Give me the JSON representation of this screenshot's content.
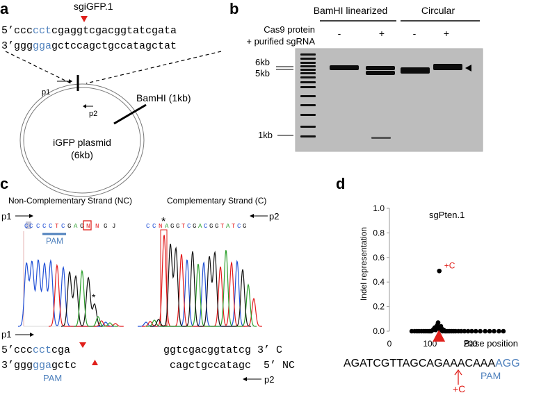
{
  "colors": {
    "blue": "#4f81bd",
    "red": "#e0201b",
    "trace_green": "#2ca02c",
    "trace_blue": "#1f4fd6",
    "trace_red": "#e31a1c",
    "trace_black": "#111111",
    "gel_bg": "#bdbdbd",
    "band": "#0d0d0d"
  },
  "panel_a": {
    "label": "a",
    "guide": "sgiGFP.1",
    "top": {
      "prefix": "5’ccc",
      "blue": "cct",
      "suffix": "cgaggtcgacggtatcgata"
    },
    "bottom": {
      "prefix": "3’ggg",
      "blue": "gga",
      "suffix": "gctccagctgccatagctat"
    },
    "p1": "p1",
    "p2": "p2",
    "bamhi": "BamHI (1kb)",
    "plasmid_line1": "iGFP plasmid",
    "plasmid_line2": "(6kb)"
  },
  "panel_b": {
    "label": "b",
    "group1": "BamHI linearized",
    "group2": "Circular",
    "row_label_1": "Cas9 protein",
    "row_label_2": "+ purified sgRNA",
    "signs": [
      "-",
      "+",
      "-",
      "+"
    ],
    "marker_6kb": "6kb",
    "marker_5kb": "5kb",
    "marker_1kb": "1kb"
  },
  "panel_c": {
    "label": "c",
    "nc_title": "Non-Complementary Strand (NC)",
    "c_title": "Complementary Strand (C)",
    "p1": "p1",
    "p2": "p2",
    "nc_bases": [
      "C",
      "C",
      "C",
      "C",
      "C",
      "T",
      "C",
      "G",
      "A",
      "G",
      "N",
      "N",
      "G",
      "J"
    ],
    "c_bases": [
      "C",
      "C",
      "N",
      "A",
      "G",
      "G",
      "T",
      "C",
      "G",
      "A",
      "C",
      "G",
      "G",
      "T",
      "A",
      "T",
      "C",
      "G"
    ],
    "pam": "PAM",
    "star": "*",
    "seq1": {
      "prefix": "5’ccc",
      "blue": "cct",
      "suffix": "cga"
    },
    "seq2": {
      "prefix": "3’ggg",
      "blue": "gga",
      "suffix": "gctc"
    },
    "pam_bottom": "PAM",
    "right1": "ggtcgacggtatcg 3’ C",
    "right2": "cagctgccatagc  5’ NC",
    "p1_bottom": "p1",
    "p2_bottom": "p2"
  },
  "panel_d": {
    "label": "d",
    "sequence_black": "AGATCGTTAGCAGAAACAAA",
    "sequence_blue": "AGG",
    "pam": "PAM",
    "insertion_label": "+C",
    "insertion_bottom": "+C"
  },
  "chart_data": {
    "type": "scatter",
    "title": "sgPten.1",
    "xlabel": "Base position",
    "ylabel": "Indel representation",
    "xlim": [
      0,
      300
    ],
    "ylim": [
      0,
      1.0
    ],
    "x_ticks": [
      0,
      100,
      200
    ],
    "y_ticks": [
      "0.0",
      "0.2",
      "0.4",
      "0.6",
      "0.8",
      "1.0"
    ],
    "annotation": "+C",
    "points": [
      {
        "x": 55,
        "y": 0.0
      },
      {
        "x": 62,
        "y": 0.0
      },
      {
        "x": 68,
        "y": 0.0
      },
      {
        "x": 73,
        "y": 0.0
      },
      {
        "x": 79,
        "y": 0.0
      },
      {
        "x": 85,
        "y": 0.0
      },
      {
        "x": 90,
        "y": 0.0
      },
      {
        "x": 95,
        "y": 0.0
      },
      {
        "x": 99,
        "y": 0.0
      },
      {
        "x": 103,
        "y": 0.0
      },
      {
        "x": 107,
        "y": 0.01
      },
      {
        "x": 110,
        "y": 0.02
      },
      {
        "x": 112,
        "y": 0.03
      },
      {
        "x": 114,
        "y": 0.01
      },
      {
        "x": 116,
        "y": 0.02
      },
      {
        "x": 118,
        "y": 0.05
      },
      {
        "x": 120,
        "y": 0.07
      },
      {
        "x": 121,
        "y": 0.03
      },
      {
        "x": 123,
        "y": 0.02
      },
      {
        "x": 125,
        "y": 0.01
      },
      {
        "x": 127,
        "y": 0.04
      },
      {
        "x": 129,
        "y": 0.02
      },
      {
        "x": 131,
        "y": 0.0
      },
      {
        "x": 134,
        "y": 0.01
      },
      {
        "x": 137,
        "y": 0.0
      },
      {
        "x": 140,
        "y": 0.0
      },
      {
        "x": 144,
        "y": 0.0
      },
      {
        "x": 148,
        "y": 0.0
      },
      {
        "x": 153,
        "y": 0.0
      },
      {
        "x": 158,
        "y": 0.0
      },
      {
        "x": 163,
        "y": 0.0
      },
      {
        "x": 170,
        "y": 0.0
      },
      {
        "x": 177,
        "y": 0.0
      },
      {
        "x": 185,
        "y": 0.0
      },
      {
        "x": 194,
        "y": 0.0
      },
      {
        "x": 203,
        "y": 0.0
      },
      {
        "x": 213,
        "y": 0.0
      },
      {
        "x": 224,
        "y": 0.0
      },
      {
        "x": 236,
        "y": 0.0
      },
      {
        "x": 247,
        "y": 0.0
      },
      {
        "x": 258,
        "y": 0.0
      },
      {
        "x": 270,
        "y": 0.0
      },
      {
        "x": 281,
        "y": 0.0
      },
      {
        "x": 123,
        "y": 0.49,
        "annotated": true
      }
    ],
    "marker": {
      "x": 122,
      "y": 0.0,
      "shape": "triangle",
      "color": "#e0201b"
    }
  }
}
